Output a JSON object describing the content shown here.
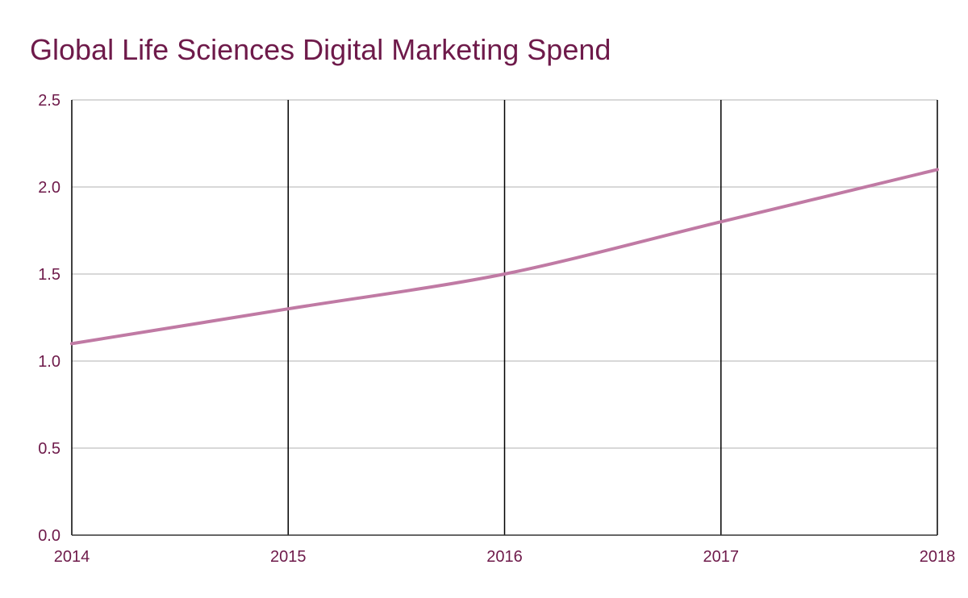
{
  "chart_data": {
    "type": "line",
    "title": "Global Life Sciences Digital Marketing Spend",
    "x": [
      "2014",
      "2015",
      "2016",
      "2017",
      "2018"
    ],
    "series": [
      {
        "values": [
          1.1,
          1.3,
          1.5,
          1.8,
          2.1
        ]
      }
    ],
    "xlabel": "",
    "ylabel": "",
    "ylim": [
      0,
      2.5
    ],
    "y_ticks": [
      "0.0",
      "0.5",
      "1.0",
      "1.5",
      "2.0",
      "2.5"
    ],
    "y_tick_values": [
      0,
      0.5,
      1.0,
      1.5,
      2.0,
      2.5
    ],
    "grid": true,
    "legend": "none",
    "colors": {
      "title": "#6e1a4a",
      "tick_labels": "#6e1a4a",
      "line": "#c07aa4",
      "horizontal_grid": "#cccccc",
      "vertical_grid": "#000000",
      "axis": "#333333"
    }
  }
}
